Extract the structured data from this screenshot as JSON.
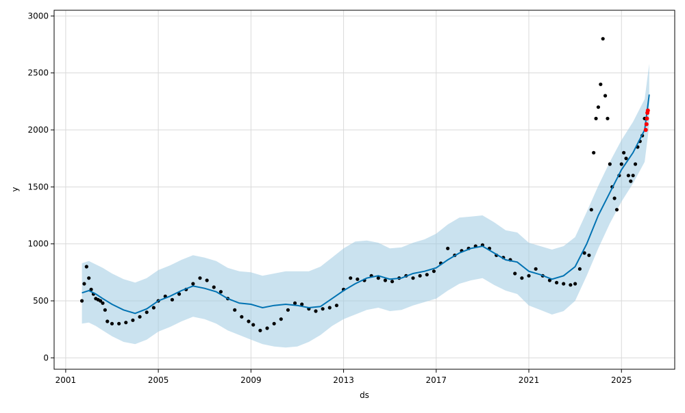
{
  "chart_data": {
    "type": "line",
    "title": "",
    "xlabel": "ds",
    "ylabel": "y",
    "x_ticks": [
      "2001",
      "2005",
      "2009",
      "2013",
      "2017",
      "2021",
      "2025"
    ],
    "y_ticks": [
      0,
      500,
      1000,
      1500,
      2000,
      2500,
      3000
    ],
    "xlim": [
      2000.5,
      2027.3
    ],
    "ylim": [
      -100,
      3050
    ],
    "grid": true,
    "colors": {
      "forecast": "#0072B2",
      "interval": "#9ecae1",
      "observed": "#000000",
      "recent": "#ff0000"
    },
    "series": [
      {
        "role": "forecast",
        "x": [
          2001.7,
          2002.0,
          2002.3,
          2002.6,
          2003.0,
          2003.5,
          2004.0,
          2004.5,
          2005.0,
          2005.5,
          2006.0,
          2006.5,
          2007.0,
          2007.5,
          2008.0,
          2008.5,
          2009.0,
          2009.5,
          2010.0,
          2010.5,
          2011.0,
          2011.5,
          2012.0,
          2012.5,
          2013.0,
          2013.5,
          2014.0,
          2014.5,
          2015.0,
          2015.5,
          2016.0,
          2016.5,
          2017.0,
          2017.5,
          2018.0,
          2018.5,
          2019.0,
          2019.5,
          2020.0,
          2020.5,
          2021.0,
          2021.5,
          2022.0,
          2022.5,
          2023.0,
          2023.5,
          2024.0,
          2024.5,
          2025.0,
          2025.5,
          2026.0,
          2026.2
        ],
        "y": [
          570,
          590,
          560,
          520,
          470,
          420,
          390,
          430,
          500,
          540,
          590,
          630,
          610,
          580,
          520,
          480,
          470,
          440,
          460,
          470,
          460,
          440,
          450,
          520,
          590,
          650,
          700,
          720,
          690,
          700,
          740,
          760,
          790,
          860,
          920,
          960,
          980,
          920,
          860,
          840,
          760,
          730,
          690,
          720,
          800,
          1000,
          1250,
          1450,
          1650,
          1800,
          2000,
          2310
        ]
      },
      {
        "role": "interval_upper",
        "x": [
          2001.7,
          2002.0,
          2002.3,
          2002.6,
          2003.0,
          2003.5,
          2004.0,
          2004.5,
          2005.0,
          2005.5,
          2006.0,
          2006.5,
          2007.0,
          2007.5,
          2008.0,
          2008.5,
          2009.0,
          2009.5,
          2010.0,
          2010.5,
          2011.0,
          2011.5,
          2012.0,
          2012.5,
          2013.0,
          2013.5,
          2014.0,
          2014.5,
          2015.0,
          2015.5,
          2016.0,
          2016.5,
          2017.0,
          2017.5,
          2018.0,
          2018.5,
          2019.0,
          2019.5,
          2020.0,
          2020.5,
          2021.0,
          2021.5,
          2022.0,
          2022.5,
          2023.0,
          2023.5,
          2024.0,
          2024.5,
          2025.0,
          2025.5,
          2026.0,
          2026.2
        ],
        "y": [
          830,
          850,
          820,
          790,
          740,
          690,
          660,
          700,
          770,
          810,
          860,
          900,
          880,
          850,
          790,
          760,
          750,
          720,
          740,
          760,
          760,
          760,
          800,
          880,
          960,
          1020,
          1030,
          1010,
          960,
          970,
          1010,
          1040,
          1090,
          1170,
          1230,
          1240,
          1250,
          1190,
          1120,
          1100,
          1010,
          980,
          950,
          980,
          1060,
          1280,
          1510,
          1720,
          1910,
          2070,
          2270,
          2580
        ]
      },
      {
        "role": "interval_lower",
        "x": [
          2001.7,
          2002.0,
          2002.3,
          2002.6,
          2003.0,
          2003.5,
          2004.0,
          2004.5,
          2005.0,
          2005.5,
          2006.0,
          2006.5,
          2007.0,
          2007.5,
          2008.0,
          2008.5,
          2009.0,
          2009.5,
          2010.0,
          2010.5,
          2011.0,
          2011.5,
          2012.0,
          2012.5,
          2013.0,
          2013.5,
          2014.0,
          2014.5,
          2015.0,
          2015.5,
          2016.0,
          2016.5,
          2017.0,
          2017.5,
          2018.0,
          2018.5,
          2019.0,
          2019.5,
          2020.0,
          2020.5,
          2021.0,
          2021.5,
          2022.0,
          2022.5,
          2023.0,
          2023.5,
          2024.0,
          2024.5,
          2025.0,
          2025.5,
          2026.0,
          2026.2
        ],
        "y": [
          300,
          310,
          280,
          240,
          190,
          140,
          120,
          160,
          230,
          270,
          320,
          360,
          340,
          300,
          240,
          200,
          160,
          120,
          100,
          90,
          100,
          140,
          200,
          280,
          340,
          380,
          420,
          440,
          410,
          420,
          460,
          490,
          520,
          590,
          650,
          680,
          700,
          640,
          590,
          560,
          460,
          420,
          380,
          410,
          500,
          720,
          960,
          1180,
          1370,
          1530,
          1720,
          2040
        ]
      },
      {
        "role": "observed",
        "x": [
          2001.7,
          2001.8,
          2001.9,
          2002.0,
          2002.1,
          2002.2,
          2002.3,
          2002.4,
          2002.5,
          2002.6,
          2002.7,
          2002.8,
          2003.0,
          2003.3,
          2003.6,
          2003.9,
          2004.2,
          2004.5,
          2004.8,
          2005.0,
          2005.3,
          2005.6,
          2005.9,
          2006.2,
          2006.5,
          2006.8,
          2007.1,
          2007.4,
          2007.7,
          2008.0,
          2008.3,
          2008.6,
          2008.9,
          2009.1,
          2009.4,
          2009.7,
          2010.0,
          2010.3,
          2010.6,
          2010.9,
          2011.2,
          2011.5,
          2011.8,
          2012.1,
          2012.4,
          2012.7,
          2013.0,
          2013.3,
          2013.6,
          2013.9,
          2014.2,
          2014.5,
          2014.8,
          2015.1,
          2015.4,
          2015.7,
          2016.0,
          2016.3,
          2016.6,
          2016.9,
          2017.2,
          2017.5,
          2017.8,
          2018.1,
          2018.4,
          2018.7,
          2019.0,
          2019.3,
          2019.6,
          2019.9,
          2020.2,
          2020.4,
          2020.7,
          2021.0,
          2021.3,
          2021.6,
          2021.9,
          2022.2,
          2022.5,
          2022.8,
          2023.0,
          2023.2,
          2023.4,
          2023.6,
          2023.7,
          2023.8,
          2023.9,
          2024.0,
          2024.1,
          2024.2,
          2024.3,
          2024.4,
          2024.5,
          2024.6,
          2024.7,
          2024.8,
          2024.9,
          2025.0,
          2025.1,
          2025.2,
          2025.3,
          2025.4,
          2025.5,
          2025.6,
          2025.7,
          2025.8,
          2025.9,
          2026.0
        ],
        "y": [
          500,
          650,
          800,
          700,
          600,
          560,
          520,
          510,
          500,
          480,
          420,
          320,
          300,
          300,
          310,
          330,
          360,
          400,
          440,
          500,
          540,
          510,
          560,
          600,
          650,
          700,
          680,
          620,
          580,
          520,
          420,
          360,
          320,
          290,
          240,
          260,
          300,
          340,
          420,
          480,
          470,
          430,
          410,
          430,
          440,
          460,
          600,
          700,
          690,
          680,
          720,
          700,
          680,
          670,
          700,
          720,
          700,
          720,
          730,
          760,
          830,
          960,
          900,
          940,
          960,
          980,
          990,
          960,
          900,
          880,
          860,
          740,
          700,
          720,
          780,
          720,
          680,
          660,
          650,
          640,
          650,
          780,
          920,
          900,
          1300,
          1800,
          2100,
          2200,
          2400,
          2800,
          2300,
          2100,
          1700,
          1500,
          1400,
          1300,
          1600,
          1700,
          1800,
          1750,
          1600,
          1550,
          1600,
          1700,
          1850,
          1900,
          1950,
          2100
        ]
      },
      {
        "role": "recent",
        "x": [
          2026.05,
          2026.08,
          2026.1,
          2026.12,
          2026.14
        ],
        "y": [
          2000,
          2050,
          2100,
          2150,
          2170
        ]
      }
    ]
  }
}
